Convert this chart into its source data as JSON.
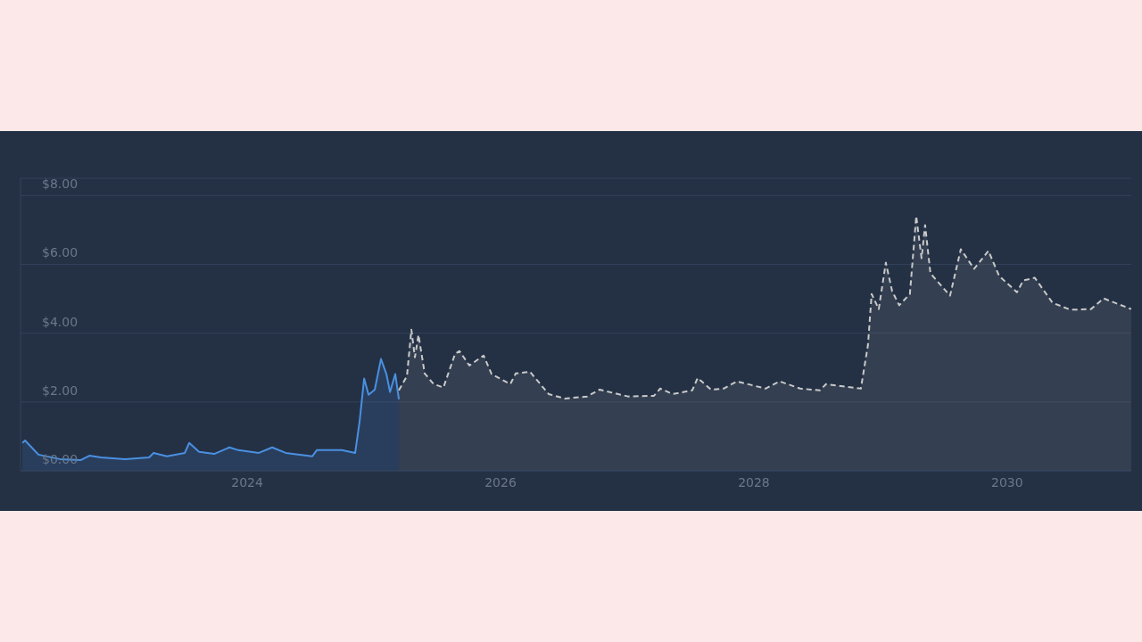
{
  "chart_data": {
    "type": "area",
    "xlim": [
      2022.21,
      2030.98
    ],
    "xticks": [
      2024,
      2026,
      2028,
      2030
    ],
    "ylim": [
      0,
      8.5
    ],
    "yticks": [
      {
        "value": 0,
        "label": "$0.00"
      },
      {
        "value": 2,
        "label": "$2.00"
      },
      {
        "value": 4,
        "label": "$4.00"
      },
      {
        "value": 6,
        "label": "$6.00"
      },
      {
        "value": 8,
        "label": "$8.00"
      }
    ],
    "grid": "y",
    "series": [
      {
        "color": "#4a90e2",
        "line_style": "solid",
        "x": [
          2022.225,
          2022.246,
          2022.352,
          2022.521,
          2022.683,
          2022.754,
          2022.845,
          2023.035,
          2023.225,
          2023.261,
          2023.366,
          2023.507,
          2023.542,
          2023.62,
          2023.739,
          2023.859,
          2023.93,
          2024.092,
          2024.197,
          2024.303,
          2024.514,
          2024.549,
          2024.746,
          2024.852,
          2024.887,
          2024.923,
          2024.958,
          2025.007,
          2025.056,
          2025.099,
          2025.127,
          2025.169,
          2025.197
        ],
        "values": [
          0.81,
          0.88,
          0.47,
          0.34,
          0.31,
          0.44,
          0.39,
          0.34,
          0.39,
          0.52,
          0.42,
          0.52,
          0.81,
          0.55,
          0.49,
          0.68,
          0.6,
          0.52,
          0.68,
          0.52,
          0.42,
          0.6,
          0.6,
          0.52,
          1.43,
          2.68,
          2.21,
          2.36,
          3.25,
          2.81,
          2.29,
          2.81,
          2.08
        ]
      },
      {
        "color": "#c9c9c9",
        "line_style": "dashed",
        "x": [
          2025.197,
          2025.261,
          2025.296,
          2025.324,
          2025.352,
          2025.401,
          2025.472,
          2025.549,
          2025.641,
          2025.676,
          2025.754,
          2025.866,
          2025.93,
          2026.077,
          2026.12,
          2026.232,
          2026.38,
          2026.507,
          2026.683,
          2026.782,
          2027.007,
          2027.211,
          2027.261,
          2027.359,
          2027.514,
          2027.556,
          2027.662,
          2027.761,
          2027.866,
          2028.092,
          2028.204,
          2028.366,
          2028.521,
          2028.57,
          2028.845,
          2028.901,
          2028.93,
          2028.986,
          2029.042,
          2029.092,
          2029.148,
          2029.232,
          2029.282,
          2029.324,
          2029.352,
          2029.394,
          2029.549,
          2029.634,
          2029.739,
          2029.852,
          2029.937,
          2030.077,
          2030.127,
          2030.218,
          2030.359,
          2030.5,
          2030.662,
          2030.761,
          2030.979
        ],
        "values": [
          2.34,
          2.75,
          4.1,
          3.3,
          3.95,
          2.83,
          2.52,
          2.42,
          3.4,
          3.48,
          3.06,
          3.35,
          2.81,
          2.52,
          2.83,
          2.88,
          2.23,
          2.1,
          2.16,
          2.36,
          2.16,
          2.18,
          2.39,
          2.23,
          2.34,
          2.7,
          2.36,
          2.39,
          2.6,
          2.39,
          2.6,
          2.39,
          2.34,
          2.52,
          2.39,
          3.66,
          5.14,
          4.7,
          6.05,
          5.22,
          4.81,
          5.14,
          7.4,
          6.18,
          7.14,
          5.74,
          5.09,
          6.44,
          5.87,
          6.39,
          5.66,
          5.19,
          5.53,
          5.61,
          4.88,
          4.68,
          4.7,
          5.01,
          4.7
        ]
      }
    ]
  }
}
